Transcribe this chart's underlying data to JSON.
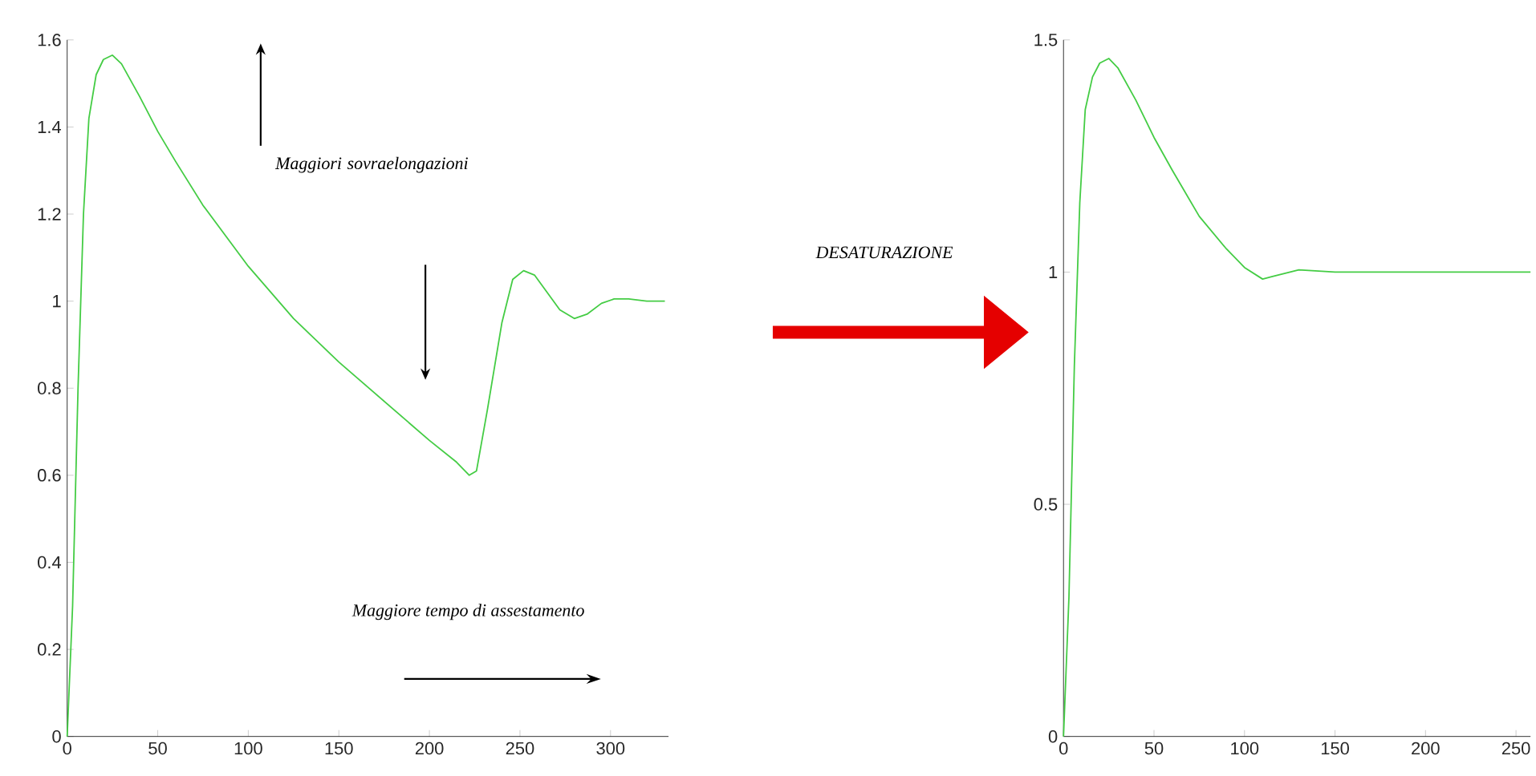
{
  "chart_data": [
    {
      "type": "line",
      "xlim": [
        0,
        332
      ],
      "ylim": [
        0,
        1.6
      ],
      "xticks": [
        0,
        50,
        100,
        150,
        200,
        250,
        300
      ],
      "yticks": [
        0,
        0.2,
        0.4,
        0.6,
        0.8,
        1,
        1.2,
        1.4,
        1.6
      ],
      "annotations": [
        "Maggiori sovraelongazioni",
        "Maggiore tempo di assestamento"
      ],
      "series": [
        {
          "color": "#44cc44",
          "x": [
            0,
            3,
            6,
            9,
            12,
            16,
            20,
            25,
            30,
            40,
            50,
            60,
            75,
            100,
            125,
            150,
            175,
            200,
            215,
            222,
            226,
            232,
            240,
            246,
            252,
            258,
            265,
            272,
            280,
            287,
            295,
            302,
            310,
            320,
            330
          ],
          "values": [
            0,
            0.3,
            0.8,
            1.2,
            1.42,
            1.52,
            1.555,
            1.565,
            1.545,
            1.47,
            1.39,
            1.32,
            1.22,
            1.08,
            0.96,
            0.86,
            0.77,
            0.68,
            0.63,
            0.6,
            0.61,
            0.75,
            0.95,
            1.05,
            1.07,
            1.06,
            1.02,
            0.98,
            0.96,
            0.97,
            0.995,
            1.005,
            1.005,
            1.0,
            1.0
          ]
        }
      ]
    },
    {
      "type": "line",
      "xlim": [
        0,
        258
      ],
      "ylim": [
        0,
        1.5
      ],
      "xticks": [
        0,
        50,
        100,
        150,
        200,
        250
      ],
      "yticks": [
        0,
        0.5,
        1,
        1.5
      ],
      "annotations": [
        "DESATURAZIONE"
      ],
      "series": [
        {
          "color": "#44cc44",
          "x": [
            0,
            3,
            6,
            9,
            12,
            16,
            20,
            25,
            30,
            40,
            50,
            60,
            75,
            90,
            100,
            110,
            115,
            130,
            150,
            175,
            200,
            225,
            250,
            258
          ],
          "values": [
            0,
            0.3,
            0.8,
            1.15,
            1.35,
            1.42,
            1.45,
            1.46,
            1.44,
            1.37,
            1.29,
            1.22,
            1.12,
            1.05,
            1.01,
            0.985,
            0.99,
            1.005,
            1.0,
            1.0,
            1.0,
            1.0,
            1.0,
            1.0
          ]
        }
      ]
    }
  ]
}
